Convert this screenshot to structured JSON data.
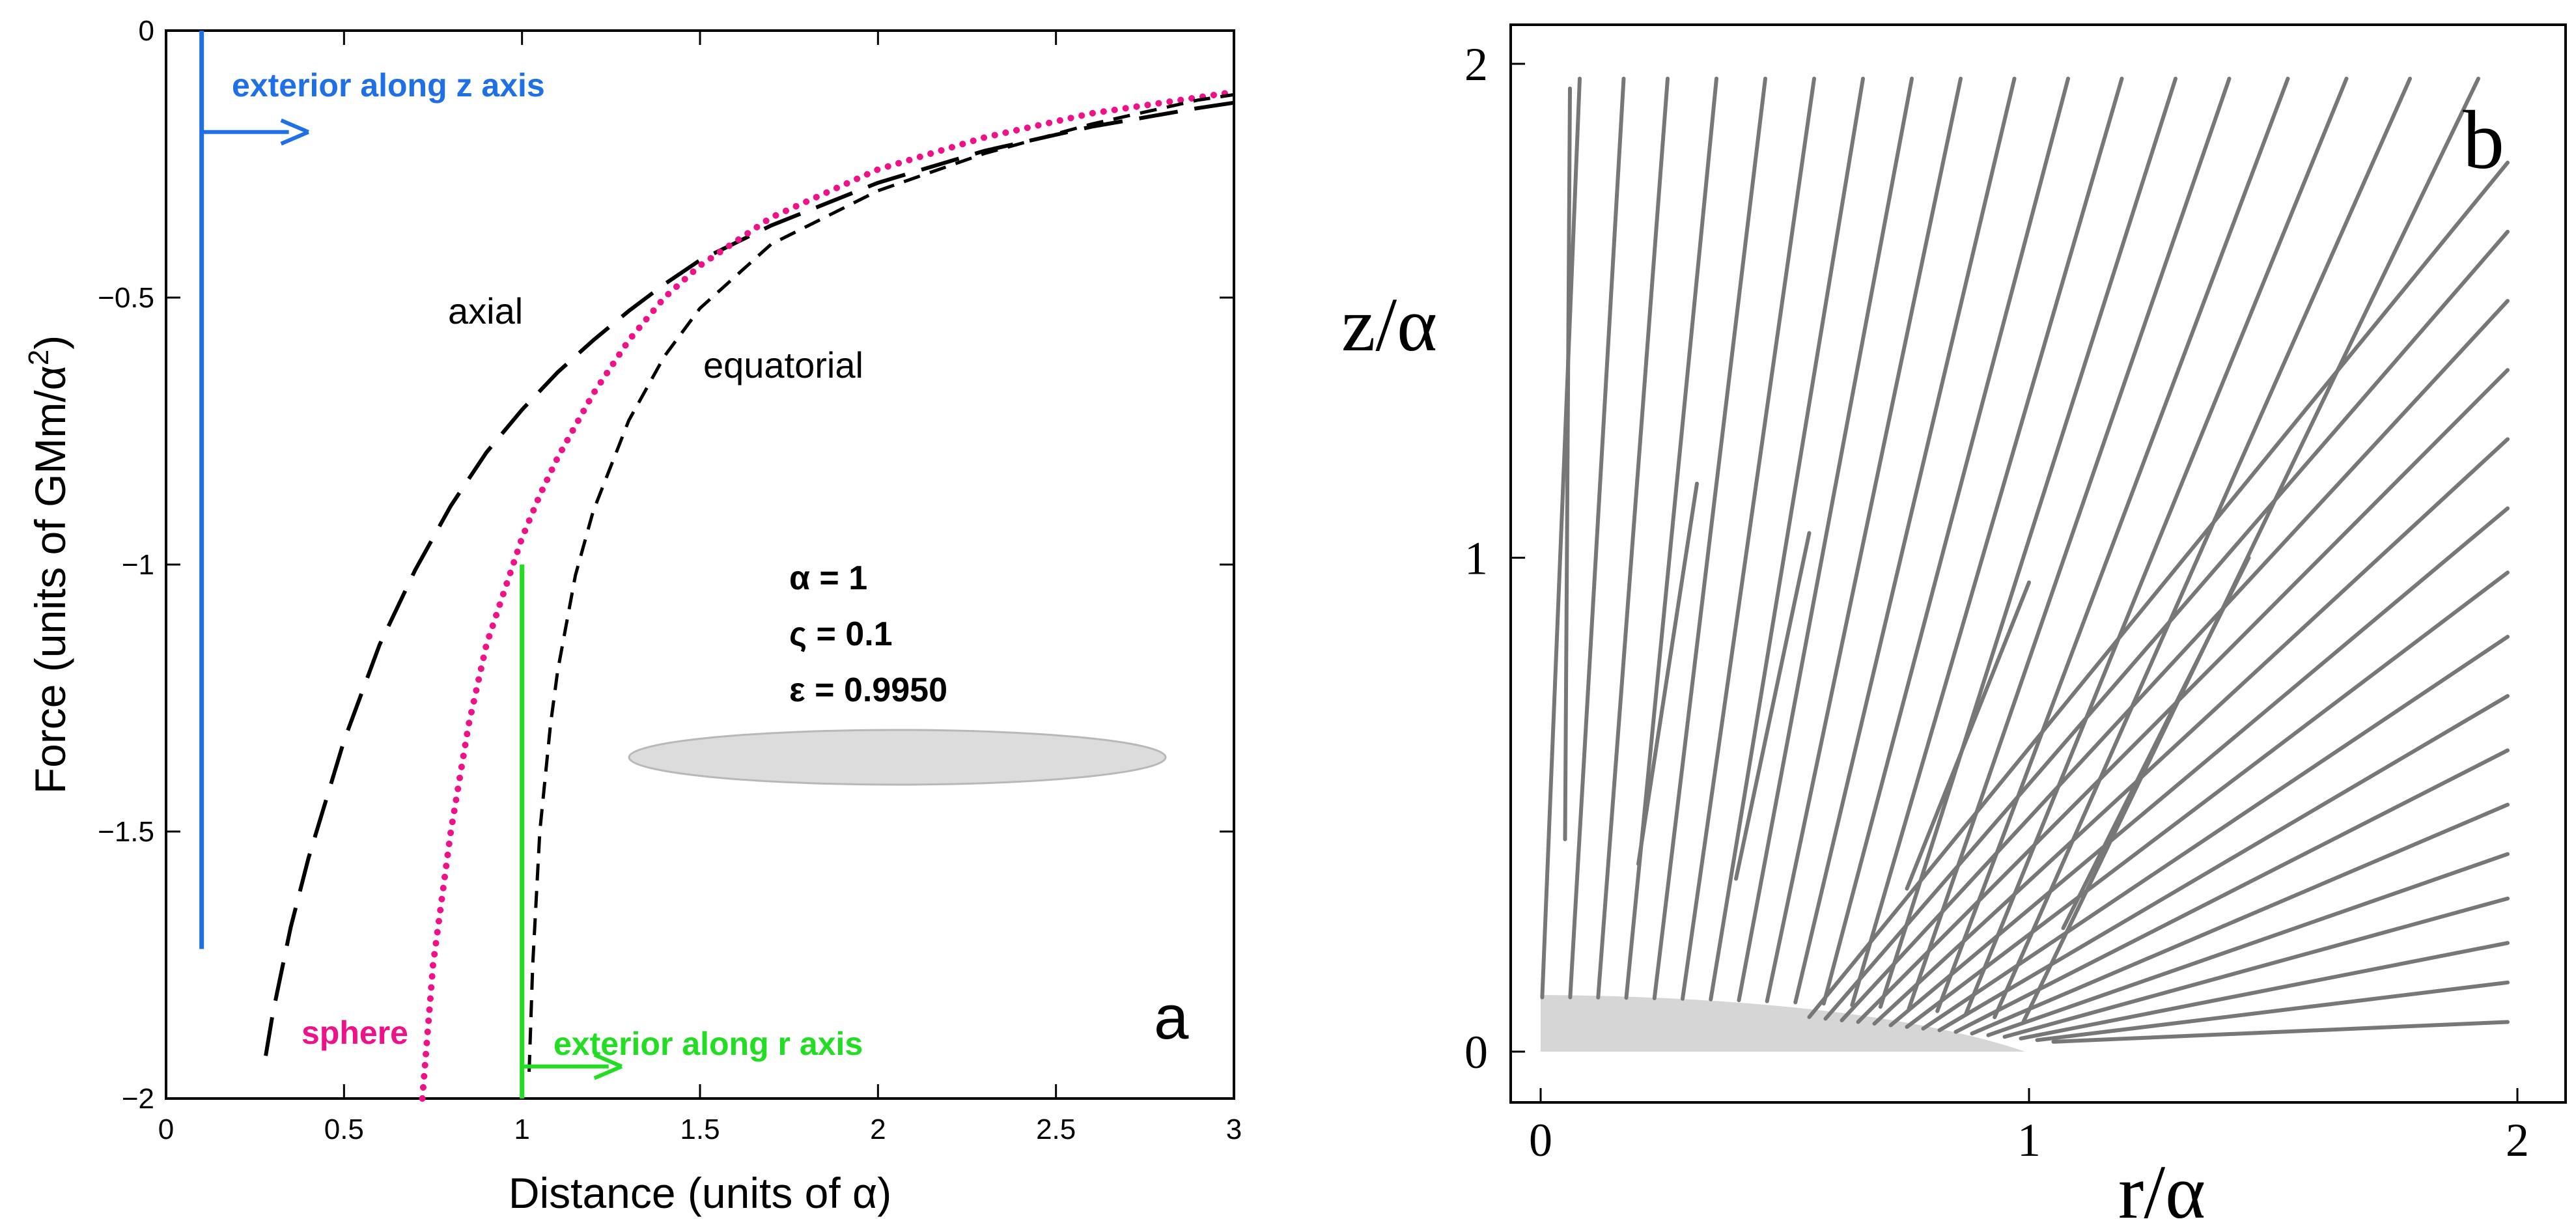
{
  "chart_data": [
    {
      "panel": "a",
      "type": "line",
      "panel_label": "a",
      "xlabel": "Distance (units of α)",
      "ylabel_main": "Force (units of GMm/α",
      "ylabel_sup": "2",
      "ylabel_close": ")",
      "xlim": [
        0,
        3
      ],
      "ylim": [
        -2,
        0
      ],
      "x_ticks": [
        0,
        0.5,
        1,
        1.5,
        2,
        2.5,
        3
      ],
      "x_tick_labels": [
        "0",
        "0.5",
        "1",
        "1.5",
        "2",
        "2.5",
        "3"
      ],
      "y_ticks": [
        0,
        -0.5,
        -1,
        -1.5,
        -2
      ],
      "y_tick_labels": [
        "0",
        "−0.5",
        "−1",
        "−1.5",
        "−2"
      ],
      "params": [
        "α = 1",
        "ς = 0.1",
        "ε = 0.9950"
      ],
      "colors": {
        "blue": "#1f6fe6",
        "green": "#22dd22",
        "pink": "#ee1188",
        "black": "#000000",
        "ellipse": "#dcdcdc"
      },
      "series": [
        {
          "name": "axial",
          "label": "axial",
          "style": "long-dash",
          "color": "#000000",
          "x": [
            0.28,
            0.3,
            0.35,
            0.4,
            0.5,
            0.6,
            0.7,
            0.8,
            0.9,
            1.0,
            1.1,
            1.2,
            1.3,
            1.4,
            1.5,
            1.7,
            2.0,
            2.3,
            2.6,
            2.9,
            3.0
          ],
          "y": [
            -1.92,
            -1.84,
            -1.68,
            -1.55,
            -1.33,
            -1.15,
            -1.01,
            -0.89,
            -0.79,
            -0.71,
            -0.64,
            -0.58,
            -0.525,
            -0.475,
            -0.43,
            -0.365,
            -0.285,
            -0.225,
            -0.18,
            -0.145,
            -0.135
          ]
        },
        {
          "name": "sphere",
          "label": "sphere",
          "style": "dotted",
          "color": "#ee1188",
          "x": [
            0.72,
            0.75,
            0.8,
            0.85,
            0.9,
            0.95,
            1.0,
            1.05,
            1.1,
            1.2,
            1.3,
            1.4,
            1.5,
            1.7,
            2.0,
            2.3,
            2.6,
            2.9,
            3.0
          ],
          "y": [
            -2.0,
            -1.75,
            -1.5,
            -1.3,
            -1.15,
            -1.05,
            -0.95,
            -0.87,
            -0.8,
            -0.68,
            -0.58,
            -0.5,
            -0.44,
            -0.35,
            -0.26,
            -0.2,
            -0.155,
            -0.125,
            -0.115
          ]
        },
        {
          "name": "equatorial",
          "label": "equatorial",
          "style": "short-dash",
          "color": "#000000",
          "x": [
            1.02,
            1.03,
            1.05,
            1.08,
            1.1,
            1.15,
            1.2,
            1.3,
            1.4,
            1.5,
            1.7,
            2.0,
            2.3,
            2.6,
            2.9,
            3.0
          ],
          "y": [
            -1.95,
            -1.75,
            -1.5,
            -1.3,
            -1.2,
            -1.02,
            -0.9,
            -0.73,
            -0.61,
            -0.52,
            -0.4,
            -0.3,
            -0.23,
            -0.175,
            -0.13,
            -0.12
          ]
        }
      ],
      "annotations": [
        {
          "name": "exterior-z",
          "text": "exterior along z axis",
          "color": "#1f6fe6"
        },
        {
          "name": "exterior-r",
          "text": "exterior along r axis",
          "color": "#22dd22"
        }
      ],
      "blue_line": {
        "x": 0.1,
        "y_from": 0,
        "y_to": -1.72,
        "arrow_y": -0.19,
        "arrow_to_x": 0.4
      },
      "green_line": {
        "x": 1.0,
        "y_from": -1.0,
        "y_to": -2.0,
        "arrow_y": -1.94,
        "arrow_to_x": 1.28
      }
    },
    {
      "panel": "b",
      "type": "line",
      "panel_label": "b",
      "xlabel": "r/α",
      "ylabel": "z/α",
      "xlim": [
        0,
        2
      ],
      "ylim": [
        0,
        2
      ],
      "x_ticks": [
        0,
        1,
        2
      ],
      "x_tick_labels": [
        "0",
        "1",
        "2"
      ],
      "y_ticks": [
        0,
        1,
        2
      ],
      "y_tick_labels": [
        "0",
        "1",
        "2"
      ],
      "line_color": "#777777",
      "shade_color": "#d6d6d6",
      "description_free": true
    }
  ]
}
